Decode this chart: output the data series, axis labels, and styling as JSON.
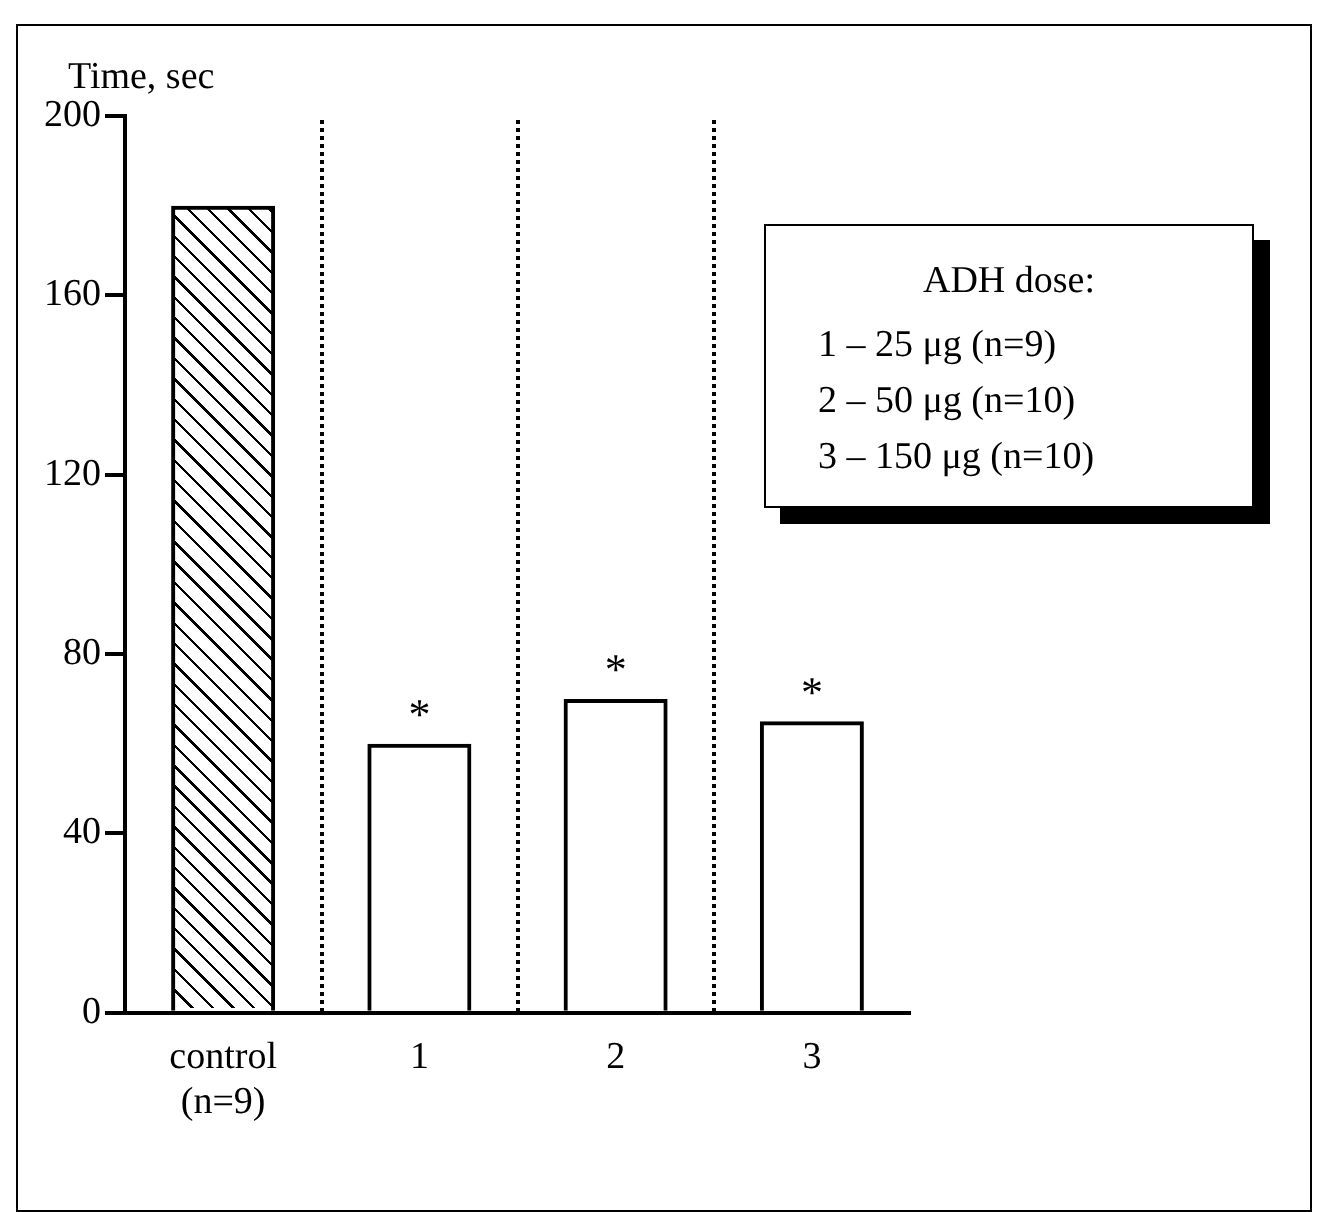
{
  "chart_data": {
    "type": "bar",
    "ylabel": "Time, sec",
    "categories": [
      "control (n=9)",
      "1",
      "2",
      "3"
    ],
    "values": [
      180,
      60,
      70,
      65
    ],
    "color": "#000000",
    "ylim": [
      0,
      200
    ],
    "yticks": [
      0,
      40,
      80,
      120,
      160,
      200
    ],
    "grid": false,
    "legend": false,
    "annotations": [
      {
        "text": "*",
        "x": "1",
        "y": 60
      },
      {
        "text": "*",
        "x": "2",
        "y": 70
      },
      {
        "text": "*",
        "x": "3",
        "y": 65
      },
      "ADH dose:",
      "1 – 25 μg (n=9)",
      "2 – 50 μg (n=10)",
      "3 – 150 μg (n=10)"
    ]
  }
}
